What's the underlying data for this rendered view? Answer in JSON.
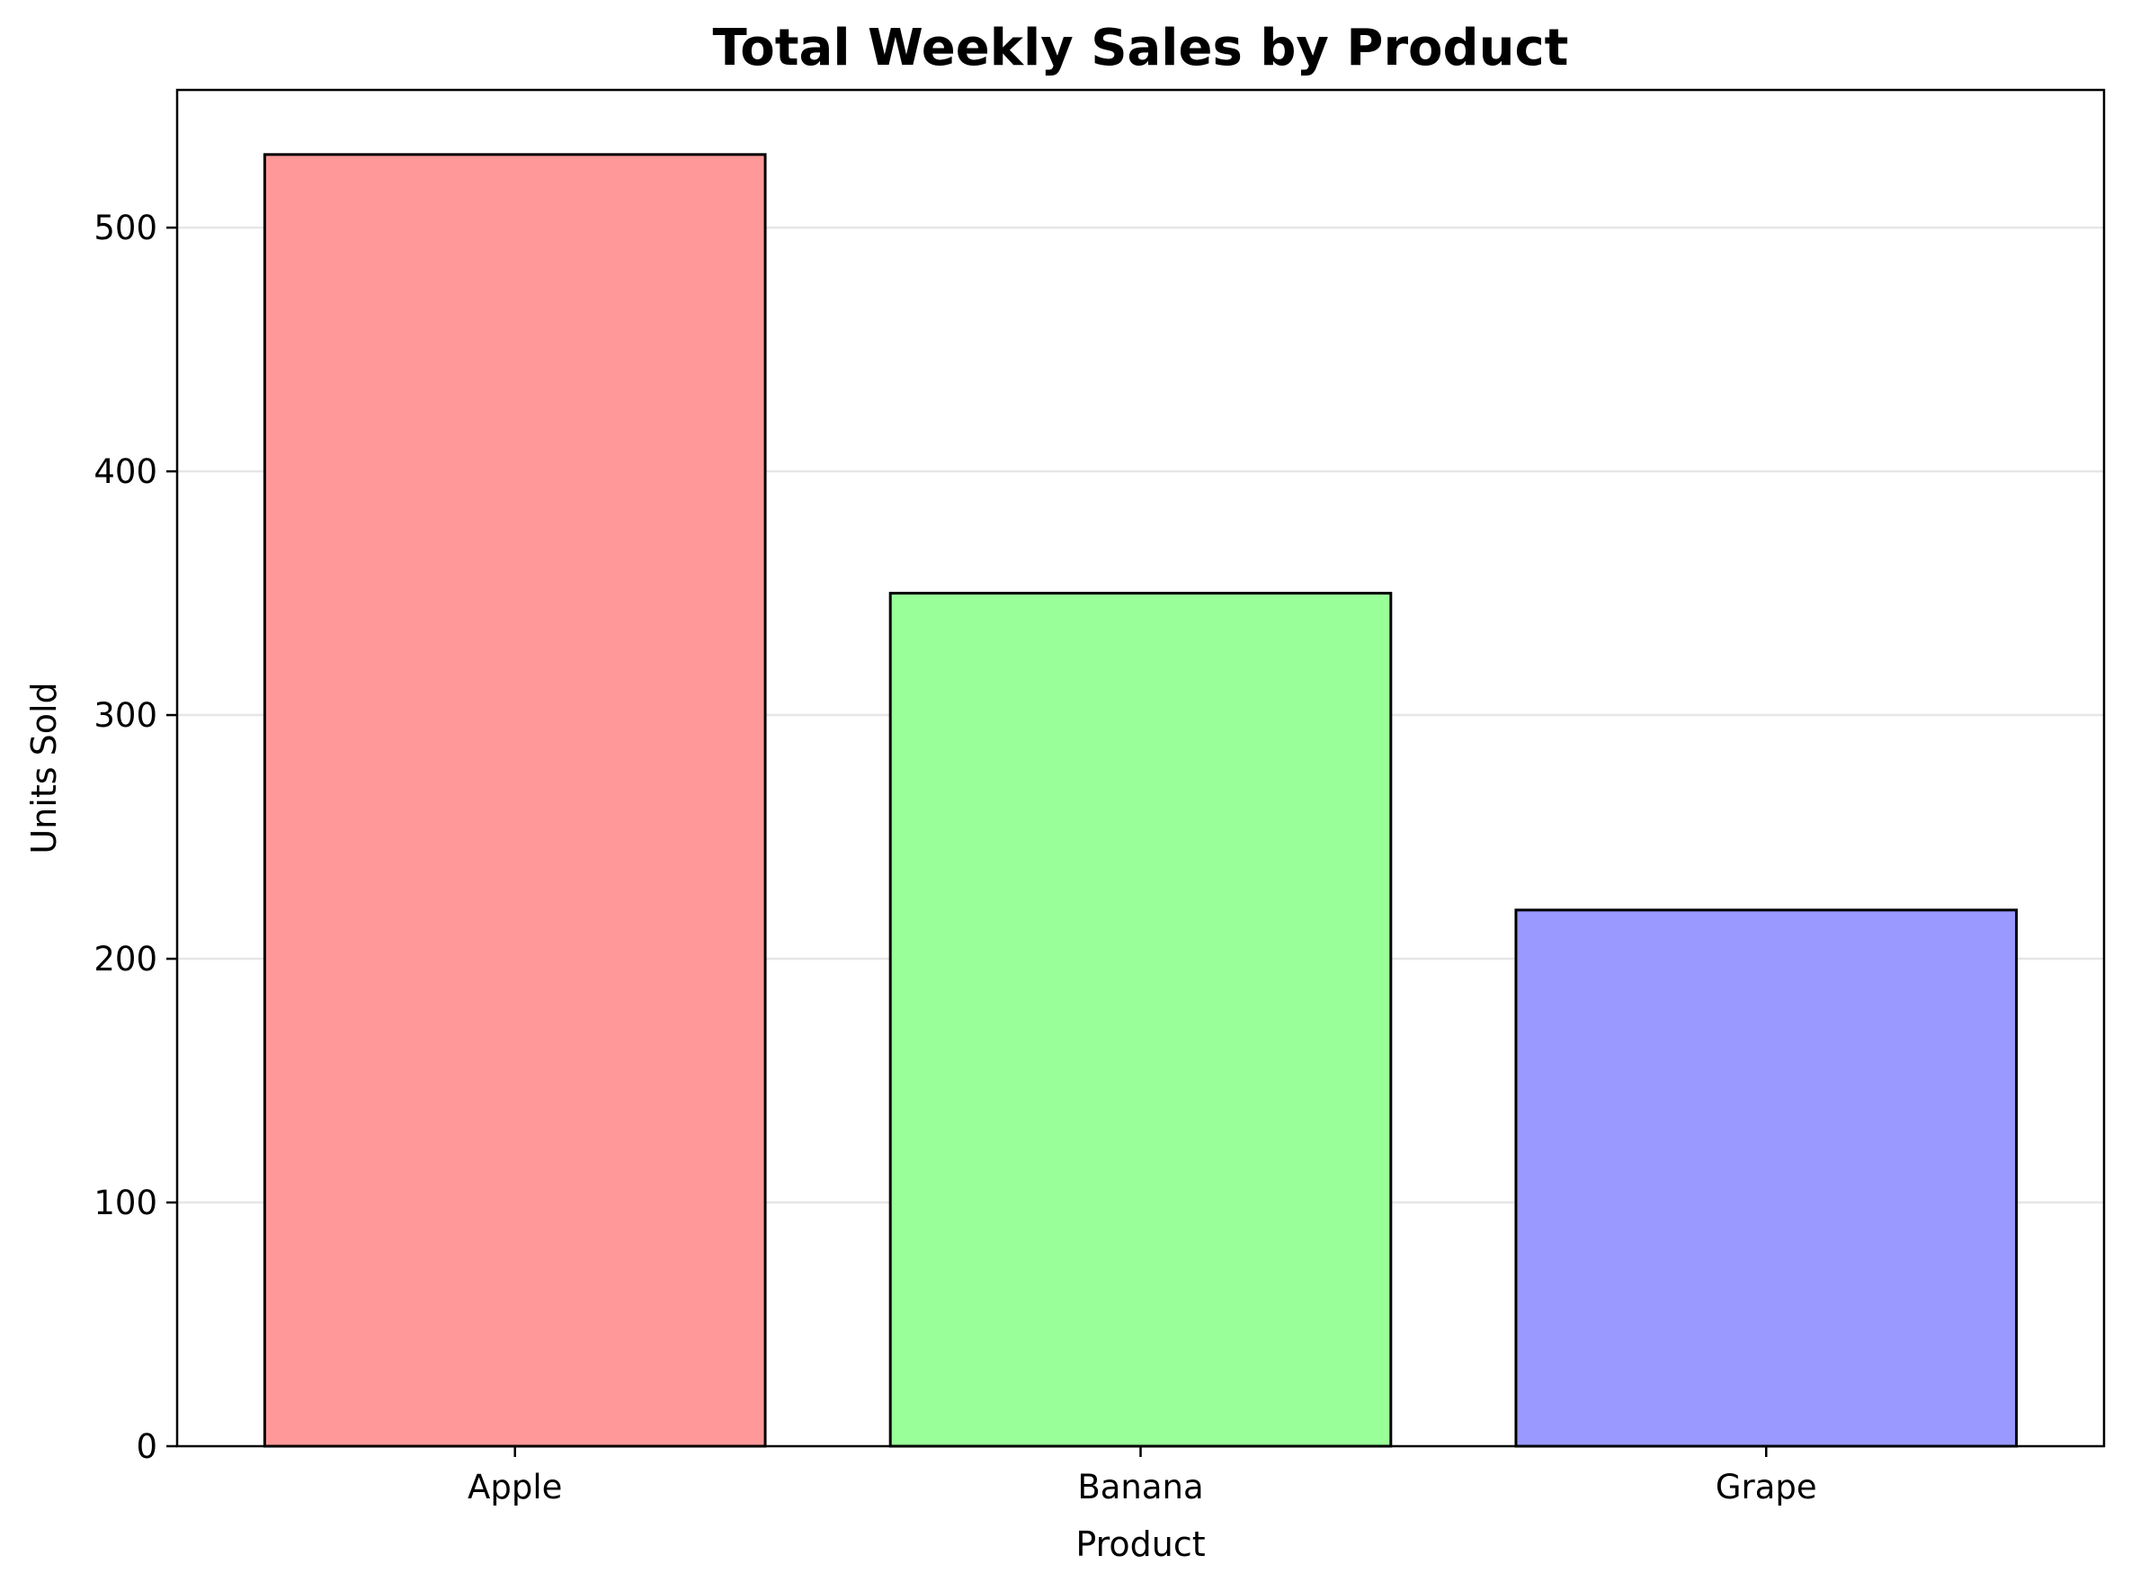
{
  "chart_data": {
    "type": "bar",
    "title": "Total Weekly Sales by Product",
    "xlabel": "Product",
    "ylabel": "Units Sold",
    "categories": [
      "Apple",
      "Banana",
      "Grape"
    ],
    "values": [
      530,
      350,
      220
    ],
    "colors": [
      "#ff9999",
      "#99ff99",
      "#9999ff"
    ],
    "edge_color": "#000000",
    "ylim": [
      0,
      556.5
    ],
    "yticks": [
      "0",
      "100",
      "200",
      "300",
      "400",
      "500"
    ],
    "ytick_values": [
      0,
      100,
      200,
      300,
      400,
      500
    ],
    "grid": "y",
    "legend": "none"
  }
}
